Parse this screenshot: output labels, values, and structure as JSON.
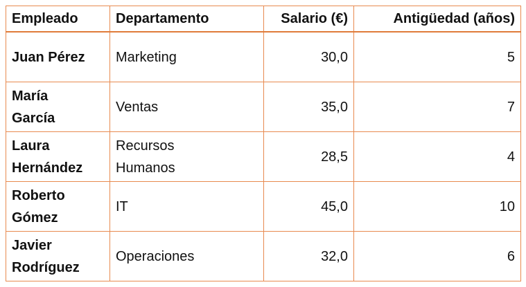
{
  "table": {
    "header": [
      "Empleado",
      "Departamento",
      "Salario (€)",
      "Antigüedad (años)"
    ],
    "rows": [
      [
        "Juan Pérez",
        "Marketing",
        "30,0",
        5
      ],
      [
        "María García",
        "Ventas",
        "35,0",
        7
      ],
      [
        "Laura Hernández",
        "Recursos Humanos",
        "28,5",
        4
      ],
      [
        "Roberto Gómez",
        "IT",
        "45,0",
        10
      ],
      [
        "Javier Rodríguez",
        "Operaciones",
        "32,0",
        6
      ]
    ]
  }
}
